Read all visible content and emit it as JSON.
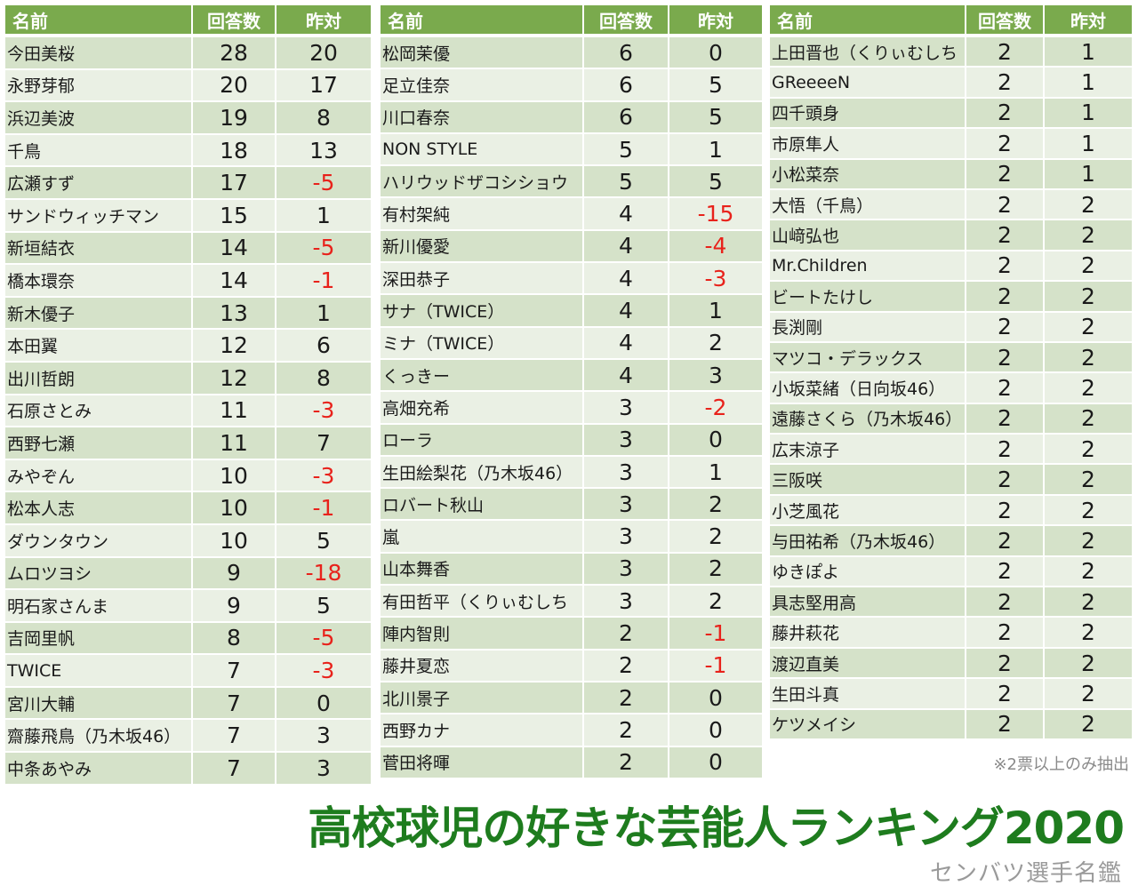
{
  "headers": {
    "name": "名前",
    "count": "回答数",
    "diff": "昨対"
  },
  "tables": [
    [
      [
        "今田美桜",
        "28",
        "20"
      ],
      [
        "永野芽郁",
        "20",
        "17"
      ],
      [
        "浜辺美波",
        "19",
        "8"
      ],
      [
        "千鳥",
        "18",
        "13"
      ],
      [
        "広瀬すず",
        "17",
        "-5"
      ],
      [
        "サンドウィッチマン",
        "15",
        "1"
      ],
      [
        "新垣結衣",
        "14",
        "-5"
      ],
      [
        "橋本環奈",
        "14",
        "-1"
      ],
      [
        "新木優子",
        "13",
        "1"
      ],
      [
        "本田翼",
        "12",
        "6"
      ],
      [
        "出川哲朗",
        "12",
        "8"
      ],
      [
        "石原さとみ",
        "11",
        "-3"
      ],
      [
        "西野七瀬",
        "11",
        "7"
      ],
      [
        "みやぞん",
        "10",
        "-3"
      ],
      [
        "松本人志",
        "10",
        "-1"
      ],
      [
        "ダウンタウン",
        "10",
        "5"
      ],
      [
        "ムロツヨシ",
        "9",
        "-18"
      ],
      [
        "明石家さんま",
        "9",
        "5"
      ],
      [
        "吉岡里帆",
        "8",
        "-5"
      ],
      [
        "TWICE",
        "7",
        "-3"
      ],
      [
        "宮川大輔",
        "7",
        "0"
      ],
      [
        "齋藤飛鳥（乃木坂46）",
        "7",
        "3"
      ],
      [
        "中条あやみ",
        "7",
        "3"
      ]
    ],
    [
      [
        "松岡茉優",
        "6",
        "0"
      ],
      [
        "足立佳奈",
        "6",
        "5"
      ],
      [
        "川口春奈",
        "6",
        "5"
      ],
      [
        "NON STYLE",
        "5",
        "1"
      ],
      [
        "ハリウッドザコシショウ",
        "5",
        "5"
      ],
      [
        "有村架純",
        "4",
        "-15"
      ],
      [
        "新川優愛",
        "4",
        "-4"
      ],
      [
        "深田恭子",
        "4",
        "-3"
      ],
      [
        "サナ（TWICE）",
        "4",
        "1"
      ],
      [
        "ミナ（TWICE）",
        "4",
        "2"
      ],
      [
        "くっきー",
        "4",
        "3"
      ],
      [
        "高畑充希",
        "3",
        "-2"
      ],
      [
        "ローラ",
        "3",
        "0"
      ],
      [
        "生田絵梨花（乃木坂46）",
        "3",
        "1"
      ],
      [
        "ロバート秋山",
        "3",
        "2"
      ],
      [
        "嵐",
        "3",
        "2"
      ],
      [
        "山本舞香",
        "3",
        "2"
      ],
      [
        "有田哲平（くりぃむしち",
        "3",
        "2"
      ],
      [
        "陣内智則",
        "2",
        "-1"
      ],
      [
        "藤井夏恋",
        "2",
        "-1"
      ],
      [
        "北川景子",
        "2",
        "0"
      ],
      [
        "西野カナ",
        "2",
        "0"
      ],
      [
        "菅田将暉",
        "2",
        "0"
      ]
    ],
    [
      [
        "上田晋也（くりぃむしち",
        "2",
        "1"
      ],
      [
        "GReeeeN",
        "2",
        "1"
      ],
      [
        "四千頭身",
        "2",
        "1"
      ],
      [
        "市原隼人",
        "2",
        "1"
      ],
      [
        "小松菜奈",
        "2",
        "1"
      ],
      [
        "大悟（千鳥）",
        "2",
        "2"
      ],
      [
        "山﨑弘也",
        "2",
        "2"
      ],
      [
        "Mr.Children",
        "2",
        "2"
      ],
      [
        "ビートたけし",
        "2",
        "2"
      ],
      [
        "長渕剛",
        "2",
        "2"
      ],
      [
        "マツコ・デラックス",
        "2",
        "2"
      ],
      [
        "小坂菜緒（日向坂46）",
        "2",
        "2"
      ],
      [
        "遠藤さくら（乃木坂46）",
        "2",
        "2"
      ],
      [
        "広末涼子",
        "2",
        "2"
      ],
      [
        "三阪咲",
        "2",
        "2"
      ],
      [
        "小芝風花",
        "2",
        "2"
      ],
      [
        "与田祐希（乃木坂46）",
        "2",
        "2"
      ],
      [
        "ゆきぽよ",
        "2",
        "2"
      ],
      [
        "具志堅用高",
        "2",
        "2"
      ],
      [
        "藤井萩花",
        "2",
        "2"
      ],
      [
        "渡辺直美",
        "2",
        "2"
      ],
      [
        "生田斗真",
        "2",
        "2"
      ],
      [
        "ケツメイシ",
        "2",
        "2"
      ]
    ]
  ],
  "note": "※2票以上のみ抽出",
  "title": "高校球児の好きな芸能人ランキング2020",
  "credit": "センバツ選手名鑑",
  "colors": {
    "header_bg": "#7aaa4d",
    "row_dark": "#d5e2c9",
    "row_light": "#eaf0e4",
    "negative": "#e8221b",
    "title": "#1e7c1e"
  }
}
